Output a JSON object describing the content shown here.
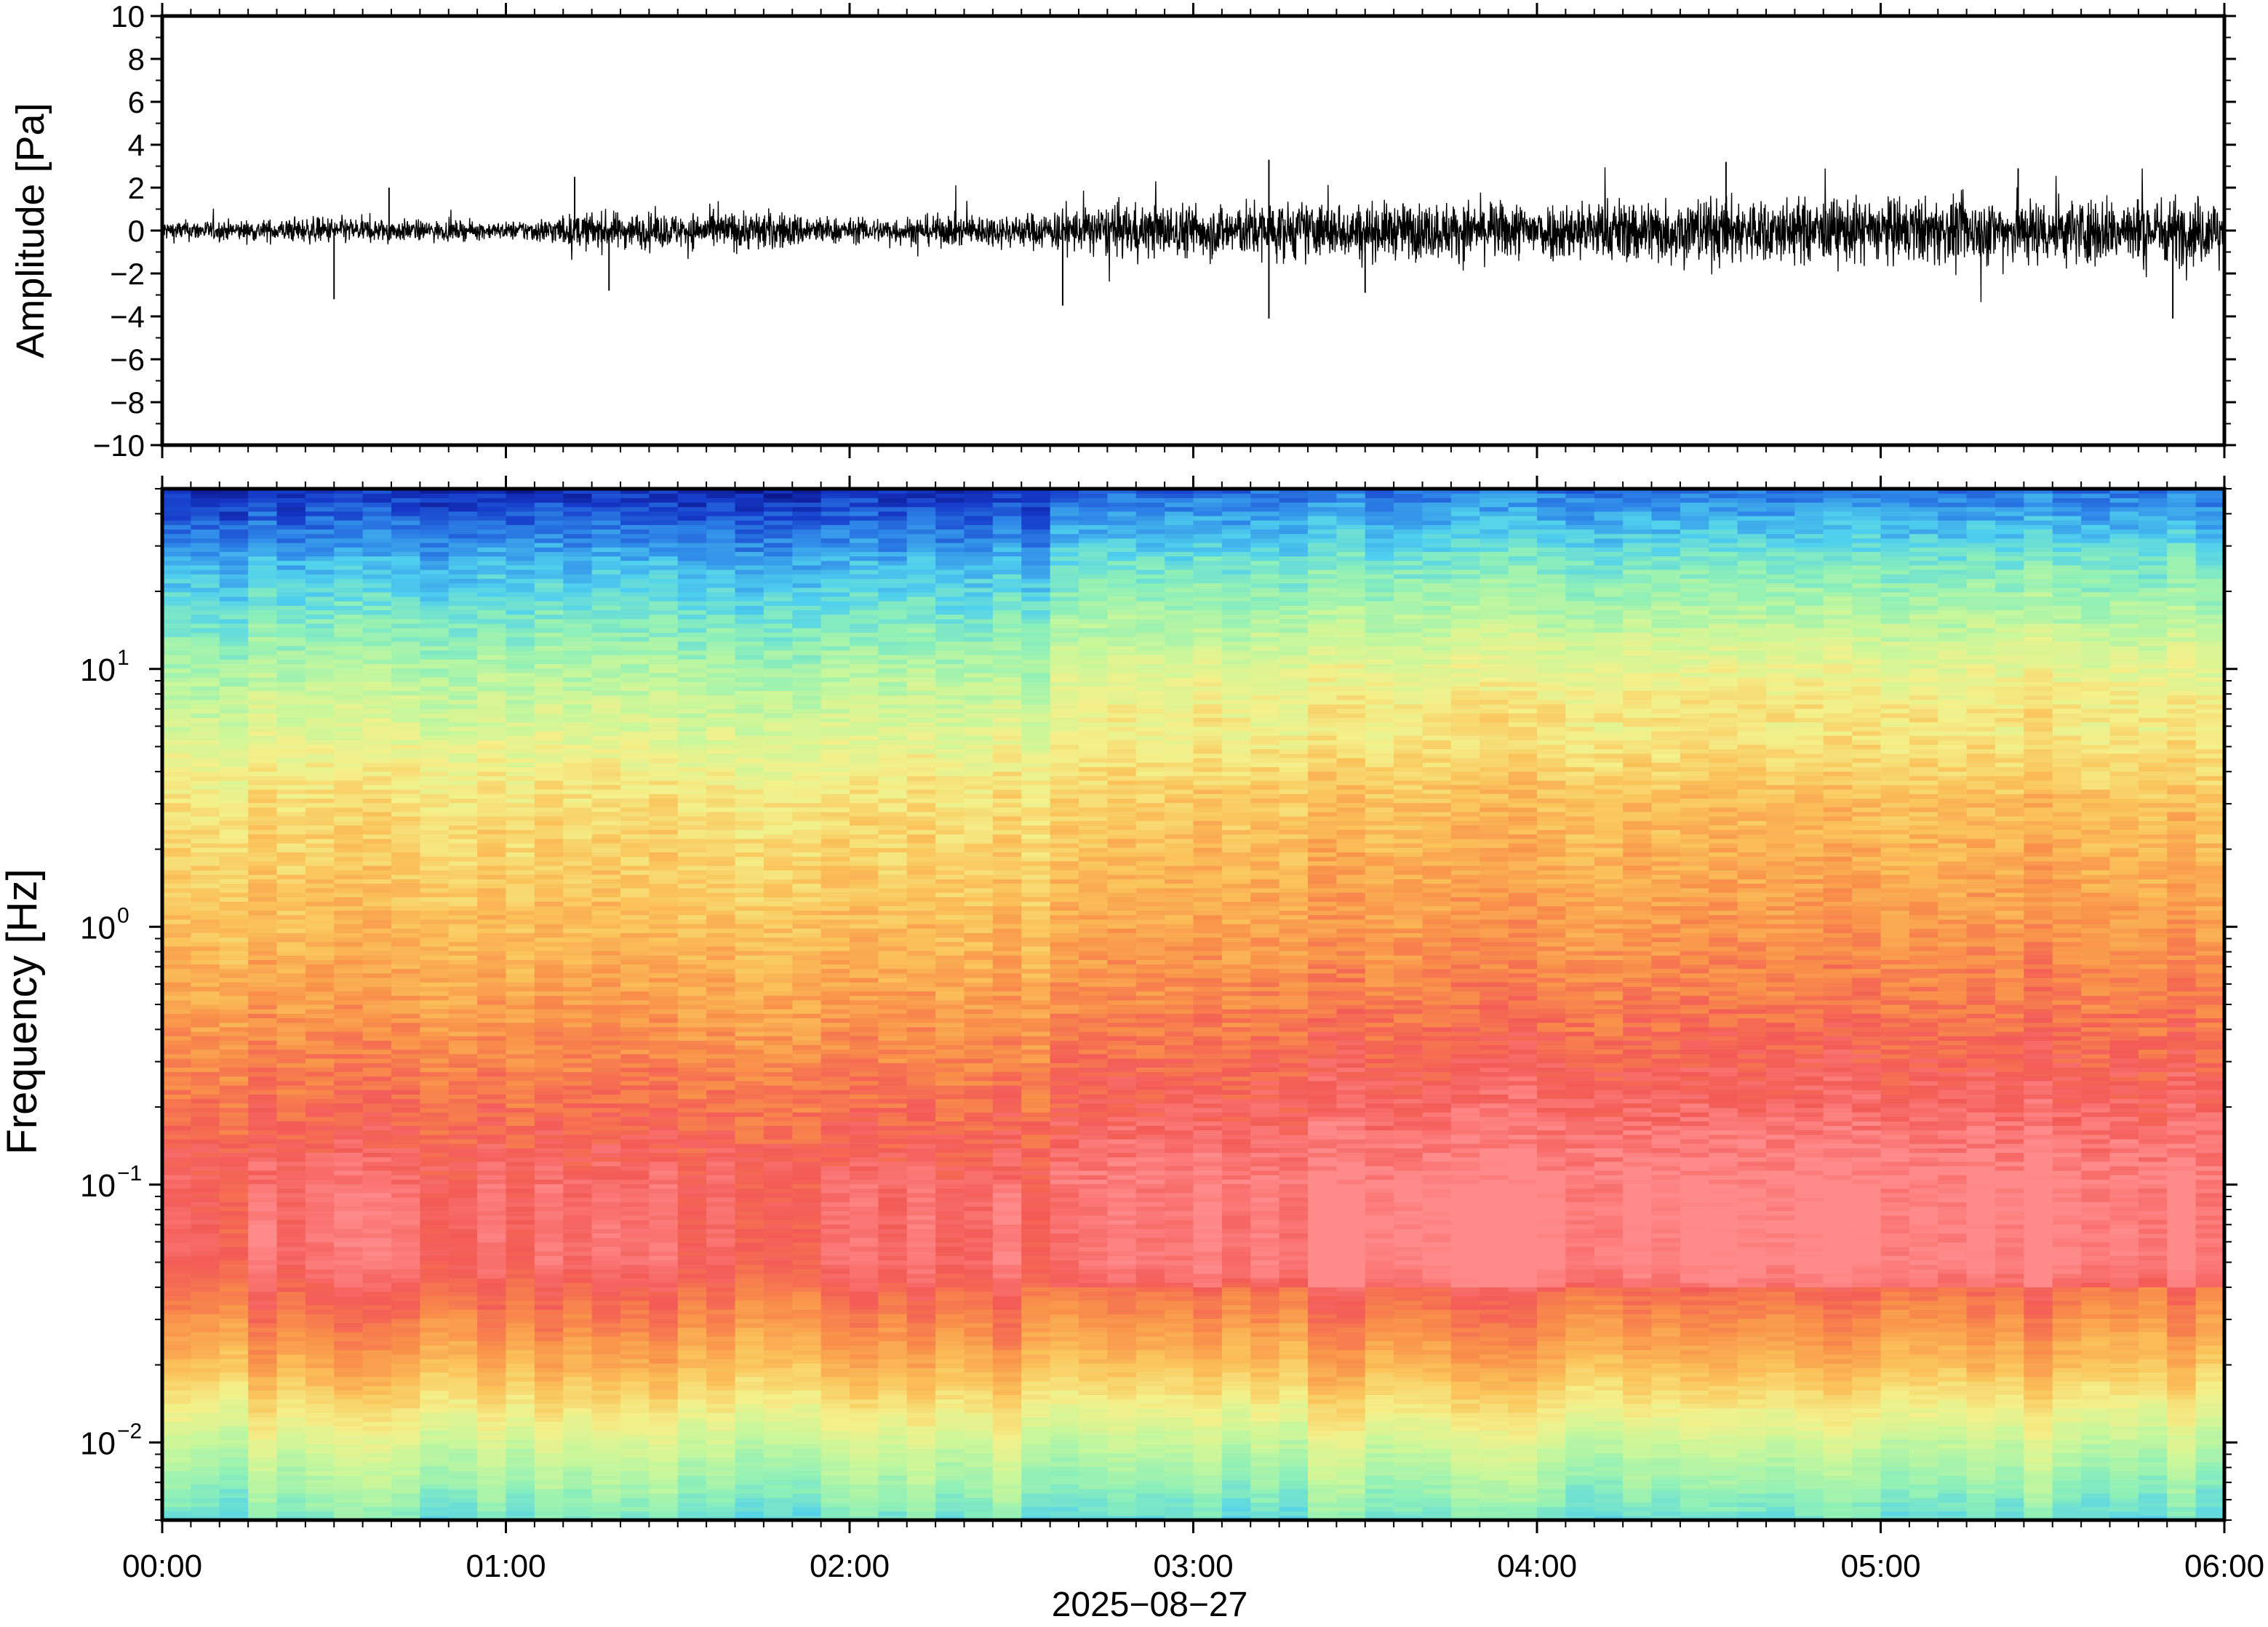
{
  "chart_data": [
    {
      "type": "line",
      "panel": "waveform",
      "ylabel": "Amplitude [Pa]",
      "ylim": [
        -10,
        10
      ],
      "yticks": [
        10,
        8,
        6,
        4,
        2,
        0,
        -2,
        -4,
        -6,
        -8,
        -10
      ],
      "ytick_labels": [
        "10",
        "8",
        "6",
        "4",
        "2",
        "0",
        "−2",
        "−4",
        "−6",
        "−8",
        "−10"
      ],
      "xlim_hours": [
        0,
        6
      ],
      "series": [
        {
          "time_h": [
            0,
            0.25,
            0.5,
            0.75,
            1.0,
            1.25,
            1.5,
            1.75,
            2.0,
            2.25,
            2.5,
            2.75,
            3.0,
            3.25,
            3.5,
            3.75,
            4.0,
            4.25,
            4.5,
            4.75,
            5.0,
            5.25,
            5.5,
            5.75,
            6.0
          ],
          "envelope_pa": [
            0.6,
            0.6,
            0.8,
            0.6,
            0.5,
            1.1,
            1.0,
            1.2,
            0.7,
            0.9,
            1.0,
            1.5,
            1.6,
            1.7,
            1.6,
            1.7,
            1.7,
            1.9,
            2.0,
            1.9,
            1.9,
            1.9,
            2.0,
            2.0,
            2.0
          ],
          "peaks_pa": [
            [
              0.5,
              -3.2
            ],
            [
              0.66,
              2.0
            ],
            [
              1.2,
              2.5
            ],
            [
              1.3,
              -2.8
            ],
            [
              2.62,
              -3.5
            ],
            [
              3.22,
              3.3
            ],
            [
              3.22,
              -4.1
            ],
            [
              3.5,
              -2.9
            ],
            [
              4.55,
              3.2
            ],
            [
              5.4,
              2.9
            ],
            [
              5.85,
              -4.1
            ],
            [
              6.0,
              2.5
            ]
          ]
        }
      ]
    },
    {
      "type": "heatmap",
      "panel": "spectrogram",
      "ylabel": "Frequency [Hz]",
      "yscale": "log",
      "ylim": [
        0.005,
        50
      ],
      "yticks": [
        0.01,
        0.1,
        1,
        10
      ],
      "ytick_labels": [
        [
          "10",
          "−2"
        ],
        [
          "10",
          "−1"
        ],
        [
          "10",
          "0"
        ],
        [
          "10",
          "1"
        ]
      ],
      "xlim_hours": [
        0,
        6
      ],
      "xtick_labels": [
        "00:00",
        "01:00",
        "02:00",
        "03:00",
        "04:00",
        "05:00",
        "06:00"
      ],
      "xlabel": "2025−08−27",
      "colormap": [
        "#0a0a75",
        "#1539c9",
        "#2e86e8",
        "#4fd0ee",
        "#8ef0b8",
        "#c8f79b",
        "#f4f08a",
        "#fbc35a",
        "#f9924a",
        "#f35b56",
        "#ff8a8a"
      ],
      "profile_log10_freq": [
        -2.3,
        -2.0,
        -1.7,
        -1.3,
        -1.0,
        -0.7,
        -0.3,
        0.0,
        0.5,
        1.0,
        1.4,
        1.7
      ],
      "profile_power_index": [
        3.6,
        5.2,
        7.3,
        9.3,
        9.3,
        8.6,
        7.7,
        7.1,
        6.3,
        4.6,
        2.7,
        0.7
      ],
      "late_increase_after_h": 2.55,
      "vertical_streak_h": [
        0.9,
        0.95
      ]
    }
  ]
}
